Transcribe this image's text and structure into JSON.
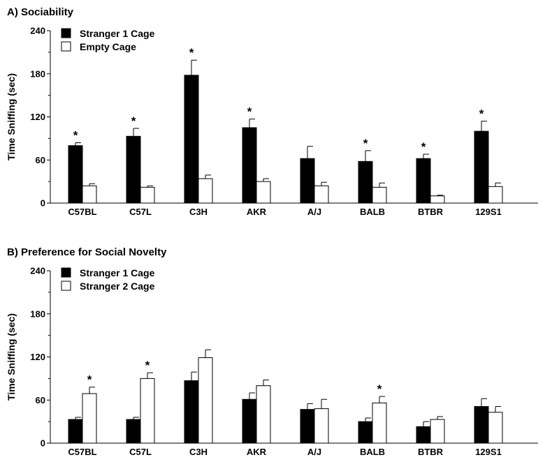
{
  "chart_data": [
    {
      "type": "bar",
      "title": "A)  Sociability",
      "xlabel": "",
      "ylabel": "Time Sniffing (sec)",
      "ylim": [
        0,
        240
      ],
      "yticks": [
        0,
        60,
        120,
        180,
        240
      ],
      "categories": [
        "C57BL",
        "C57L",
        "C3H",
        "AKR",
        "A/J",
        "BALB",
        "BTBR",
        "129S1"
      ],
      "series": [
        {
          "name": "Stranger 1 Cage",
          "fill": "#000000",
          "values": [
            80,
            93,
            178,
            105,
            62,
            58,
            62,
            100
          ],
          "errors": [
            4,
            11,
            21,
            12,
            17,
            15,
            6,
            14
          ]
        },
        {
          "name": "Empty Cage",
          "fill": "#ffffff",
          "values": [
            24,
            22,
            34,
            30,
            24,
            22,
            10,
            23
          ],
          "errors": [
            3,
            2,
            5,
            4,
            5,
            6,
            1,
            5
          ]
        }
      ],
      "significance": [
        {
          "category": "C57BL",
          "series": 0,
          "label": "*"
        },
        {
          "category": "C57L",
          "series": 0,
          "label": "*"
        },
        {
          "category": "C3H",
          "series": 0,
          "label": "*"
        },
        {
          "category": "AKR",
          "series": 0,
          "label": "*"
        },
        {
          "category": "BALB",
          "series": 0,
          "label": "*"
        },
        {
          "category": "BTBR",
          "series": 0,
          "label": "*"
        },
        {
          "category": "129S1",
          "series": 0,
          "label": "*"
        }
      ],
      "legend_position": "top-left"
    },
    {
      "type": "bar",
      "title": "B)  Preference for Social Novelty",
      "xlabel": "",
      "ylabel": "Time Sniffing (sec)",
      "ylim": [
        0,
        240
      ],
      "yticks": [
        0,
        60,
        120,
        180,
        240
      ],
      "categories": [
        "C57BL",
        "C57L",
        "C3H",
        "AKR",
        "A/J",
        "BALB",
        "BTBR",
        "129S1"
      ],
      "series": [
        {
          "name": "Stranger 1 Cage",
          "fill": "#000000",
          "values": [
            33,
            33,
            87,
            61,
            47,
            30,
            23,
            51
          ],
          "errors": [
            3,
            3,
            12,
            9,
            8,
            5,
            7,
            11
          ]
        },
        {
          "name": "Stranger 2 Cage",
          "fill": "#ffffff",
          "values": [
            69,
            90,
            119,
            80,
            48,
            56,
            33,
            43
          ],
          "errors": [
            9,
            8,
            11,
            8,
            13,
            9,
            4,
            8
          ]
        }
      ],
      "significance": [
        {
          "category": "C57BL",
          "series": 1,
          "label": "*"
        },
        {
          "category": "C57L",
          "series": 1,
          "label": "*"
        },
        {
          "category": "BALB",
          "series": 1,
          "label": "*"
        }
      ],
      "legend_position": "top-left"
    }
  ]
}
